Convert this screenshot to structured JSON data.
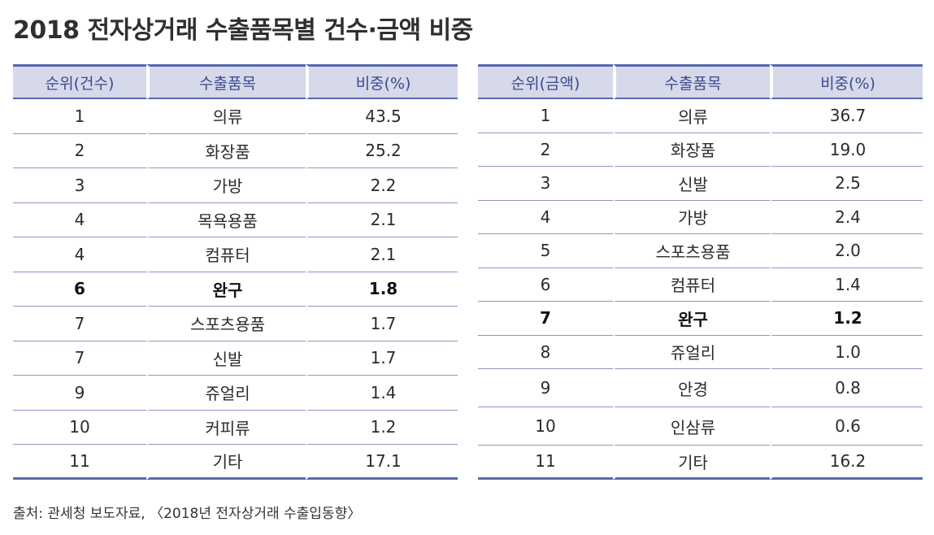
{
  "title": "2018 전자상거래 수출품목별 건수·금액 비중",
  "left_table": {
    "headers": [
      "순위(건수)",
      "수출품목",
      "비중(%)"
    ],
    "rows": [
      [
        "1",
        "의류",
        "43.5"
      ],
      [
        "2",
        "화장품",
        "25.2"
      ],
      [
        "3",
        "가방",
        "2.2"
      ],
      [
        "4",
        "목욕용품",
        "2.1"
      ],
      [
        "4",
        "컴퓨터",
        "2.1"
      ],
      [
        "6",
        "완구",
        "1.8"
      ],
      [
        "7",
        "스포츠용품",
        "1.7"
      ],
      [
        "7",
        "신발",
        "1.7"
      ],
      [
        "9",
        "쥬얼리",
        "1.4"
      ],
      [
        "10",
        "커피류",
        "1.2"
      ],
      [
        "11",
        "기타",
        "17.1"
      ]
    ]
  },
  "right_table": {
    "headers": [
      "순위(금액)",
      "수출품목",
      "비중(%)"
    ],
    "rows": [
      [
        "1",
        "의류",
        "36.7"
      ],
      [
        "2",
        "화장품",
        "19.0"
      ],
      [
        "3",
        "신발",
        "2.5"
      ],
      [
        "4",
        "가방",
        "2.4"
      ],
      [
        "5",
        "스포츠용품",
        "2.0"
      ],
      [
        "6",
        "컴퓨터",
        "1.4"
      ],
      [
        "7",
        "완구",
        "1.2"
      ],
      [
        "8",
        "쥬얼리",
        "1.0"
      ],
      [
        "9",
        "안경",
        "0.8"
      ],
      [
        "10",
        "인삼류",
        "0.6"
      ],
      [
        "11",
        "기타",
        "16.2"
      ]
    ]
  },
  "source": "출처: 관세청 보도자료, 〈2018년 전자상거래 수출입동향〉"
}
